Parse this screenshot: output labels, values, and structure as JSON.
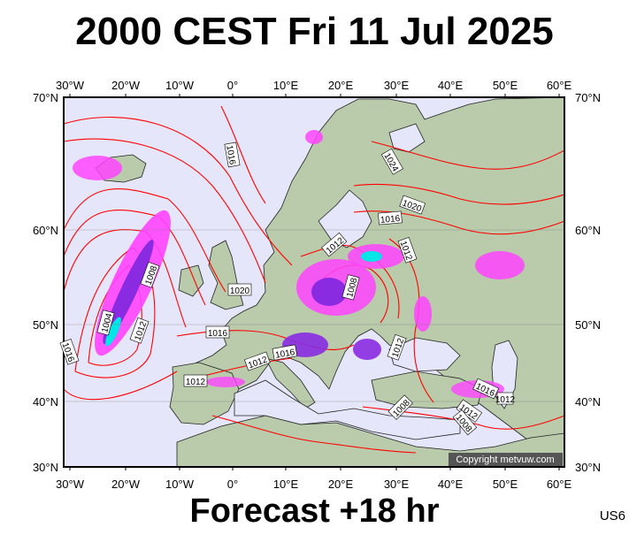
{
  "title": "2000 CEST Fri 11 Jul 2025",
  "footer": "Forecast +18 hr",
  "model_code": "US6",
  "copyright": "Copyright metvuw.com",
  "axes": {
    "longitude_labels": [
      "30°W",
      "20°W",
      "10°W",
      "0°",
      "10°E",
      "20°E",
      "30°E",
      "40°E",
      "50°E",
      "60°E"
    ],
    "latitude_labels": [
      "70°N",
      "60°N",
      "50°N",
      "40°N",
      "30°N"
    ]
  },
  "isobar_labels": [
    "1016",
    "1024",
    "1020",
    "1016",
    "1012",
    "1012",
    "1008",
    "1020",
    "1008",
    "1004",
    "1012",
    "1016",
    "1016",
    "1012",
    "1016",
    "1012",
    "1012",
    "1008",
    "1016",
    "1012",
    "1012",
    "1008",
    "1008",
    "1016"
  ],
  "colors": {
    "ocean": "#e6e6fa",
    "land": "#b9cbaa",
    "isobar": "#ff0000",
    "rain_light": "#ff44ff",
    "rain_mid": "#8a2be2",
    "rain_heavy": "#00e5e5"
  }
}
